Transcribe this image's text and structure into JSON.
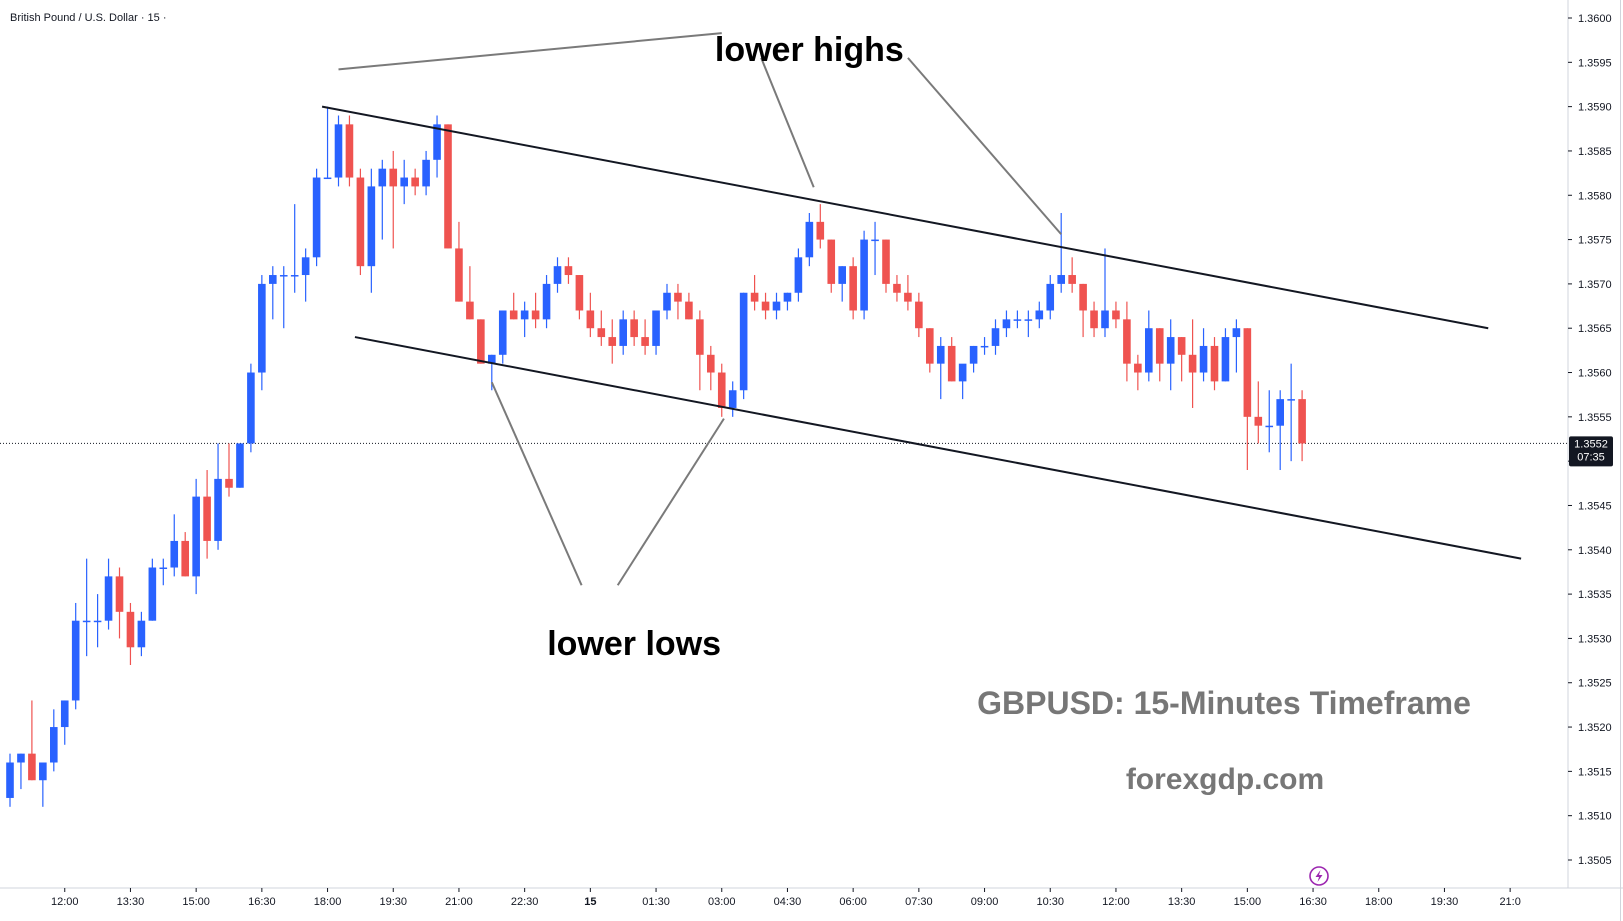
{
  "symbol_label": "British Pound / U.S. Dollar · 15 ·",
  "colors": {
    "up": "#2962ff",
    "down": "#ef5350",
    "axis_text": "#131722",
    "price_box": "#131722",
    "watermark": "#777777"
  },
  "chart_data": {
    "type": "candlestick",
    "ylim": [
      1.3498,
      1.3603
    ],
    "y_ticks": [
      "1.3505",
      "1.3510",
      "1.3515",
      "1.3520",
      "1.3525",
      "1.3530",
      "1.3535",
      "1.3540",
      "1.3545",
      "1.3550",
      "1.3555",
      "1.3560",
      "1.3565",
      "1.3570",
      "1.3575",
      "1.3580",
      "1.3585",
      "1.3590",
      "1.3595",
      "1.3600"
    ],
    "x_ticks": [
      {
        "label": "12:00",
        "bar": 5
      },
      {
        "label": "13:30",
        "bar": 11
      },
      {
        "label": "15:00",
        "bar": 17
      },
      {
        "label": "16:30",
        "bar": 23
      },
      {
        "label": "18:00",
        "bar": 29
      },
      {
        "label": "19:30",
        "bar": 35
      },
      {
        "label": "21:00",
        "bar": 41
      },
      {
        "label": "22:30",
        "bar": 47
      },
      {
        "label": "15",
        "bar": 53
      },
      {
        "label": "01:30",
        "bar": 59
      },
      {
        "label": "03:00",
        "bar": 65
      },
      {
        "label": "04:30",
        "bar": 71
      },
      {
        "label": "06:00",
        "bar": 77
      },
      {
        "label": "07:30",
        "bar": 83
      },
      {
        "label": "09:00",
        "bar": 89
      },
      {
        "label": "10:30",
        "bar": 95
      },
      {
        "label": "12:00",
        "bar": 101
      },
      {
        "label": "13:30",
        "bar": 107
      },
      {
        "label": "15:00",
        "bar": 113
      },
      {
        "label": "16:30",
        "bar": 119
      },
      {
        "label": "18:00",
        "bar": 125
      },
      {
        "label": "19:30",
        "bar": 131
      },
      {
        "label": "21:0",
        "bar": 137
      }
    ],
    "candles": [
      [
        1.3512,
        1.3517,
        1.3511,
        1.3516
      ],
      [
        1.3516,
        1.3517,
        1.3513,
        1.3517
      ],
      [
        1.3517,
        1.3523,
        1.3514,
        1.3514
      ],
      [
        1.3514,
        1.3516,
        1.3511,
        1.3516
      ],
      [
        1.3516,
        1.3522,
        1.3515,
        1.352
      ],
      [
        1.352,
        1.3523,
        1.3518,
        1.3523
      ],
      [
        1.3523,
        1.3534,
        1.3522,
        1.3532
      ],
      [
        1.3532,
        1.3539,
        1.3528,
        1.3532
      ],
      [
        1.3532,
        1.3535,
        1.3529,
        1.3532
      ],
      [
        1.3532,
        1.3539,
        1.3531,
        1.3537
      ],
      [
        1.3537,
        1.3538,
        1.353,
        1.3533
      ],
      [
        1.3533,
        1.3534,
        1.3527,
        1.3529
      ],
      [
        1.3529,
        1.3533,
        1.3528,
        1.3532
      ],
      [
        1.3532,
        1.3539,
        1.3532,
        1.3538
      ],
      [
        1.3538,
        1.3539,
        1.3536,
        1.3538
      ],
      [
        1.3538,
        1.3544,
        1.3537,
        1.3541
      ],
      [
        1.3541,
        1.3542,
        1.3537,
        1.3537
      ],
      [
        1.3537,
        1.3548,
        1.3535,
        1.3546
      ],
      [
        1.3546,
        1.3549,
        1.3539,
        1.3541
      ],
      [
        1.3541,
        1.3552,
        1.354,
        1.3548
      ],
      [
        1.3548,
        1.3552,
        1.3546,
        1.3547
      ],
      [
        1.3547,
        1.3552,
        1.3547,
        1.3552
      ],
      [
        1.3552,
        1.3561,
        1.3551,
        1.356
      ],
      [
        1.356,
        1.3571,
        1.3558,
        1.357
      ],
      [
        1.357,
        1.3572,
        1.3566,
        1.3571
      ],
      [
        1.3571,
        1.3572,
        1.3565,
        1.3571
      ],
      [
        1.3571,
        1.3579,
        1.3569,
        1.3571
      ],
      [
        1.3571,
        1.3574,
        1.3568,
        1.3573
      ],
      [
        1.3573,
        1.3583,
        1.3572,
        1.3582
      ],
      [
        1.3582,
        1.359,
        1.3582,
        1.3582
      ],
      [
        1.3582,
        1.3589,
        1.3581,
        1.3588
      ],
      [
        1.3588,
        1.3589,
        1.3581,
        1.3582
      ],
      [
        1.3582,
        1.3583,
        1.3571,
        1.3572
      ],
      [
        1.3572,
        1.3583,
        1.3569,
        1.3581
      ],
      [
        1.3581,
        1.3584,
        1.3575,
        1.3583
      ],
      [
        1.3583,
        1.3585,
        1.3574,
        1.3581
      ],
      [
        1.3581,
        1.3584,
        1.3579,
        1.3582
      ],
      [
        1.3582,
        1.3583,
        1.358,
        1.3581
      ],
      [
        1.3581,
        1.3585,
        1.358,
        1.3584
      ],
      [
        1.3584,
        1.3589,
        1.3582,
        1.3588
      ],
      [
        1.3588,
        1.3588,
        1.3574,
        1.3574
      ],
      [
        1.3574,
        1.3577,
        1.3568,
        1.3568
      ],
      [
        1.3568,
        1.3572,
        1.3566,
        1.3566
      ],
      [
        1.3566,
        1.3566,
        1.3561,
        1.3561
      ],
      [
        1.3561,
        1.3562,
        1.3558,
        1.3562
      ],
      [
        1.3562,
        1.3567,
        1.3561,
        1.3567
      ],
      [
        1.3567,
        1.3569,
        1.3566,
        1.3566
      ],
      [
        1.3566,
        1.3568,
        1.3564,
        1.3567
      ],
      [
        1.3567,
        1.3569,
        1.3565,
        1.3566
      ],
      [
        1.3566,
        1.3571,
        1.3565,
        1.357
      ],
      [
        1.357,
        1.3573,
        1.3569,
        1.3572
      ],
      [
        1.3572,
        1.3573,
        1.357,
        1.3571
      ],
      [
        1.3571,
        1.3571,
        1.3566,
        1.3567
      ],
      [
        1.3567,
        1.3569,
        1.3564,
        1.3565
      ],
      [
        1.3565,
        1.3567,
        1.3563,
        1.3564
      ],
      [
        1.3564,
        1.3566,
        1.3561,
        1.3563
      ],
      [
        1.3563,
        1.3567,
        1.3562,
        1.3566
      ],
      [
        1.3566,
        1.3567,
        1.3563,
        1.3564
      ],
      [
        1.3564,
        1.3566,
        1.3562,
        1.3563
      ],
      [
        1.3563,
        1.3567,
        1.3562,
        1.3567
      ],
      [
        1.3567,
        1.357,
        1.3566,
        1.3569
      ],
      [
        1.3569,
        1.357,
        1.3566,
        1.3568
      ],
      [
        1.3568,
        1.3569,
        1.3566,
        1.3566
      ],
      [
        1.3566,
        1.3567,
        1.3558,
        1.3562
      ],
      [
        1.3562,
        1.3563,
        1.3558,
        1.356
      ],
      [
        1.356,
        1.3561,
        1.3555,
        1.3556
      ],
      [
        1.3556,
        1.3559,
        1.3555,
        1.3558
      ],
      [
        1.3558,
        1.3569,
        1.3557,
        1.3569
      ],
      [
        1.3569,
        1.3571,
        1.3567,
        1.3568
      ],
      [
        1.3568,
        1.3569,
        1.3566,
        1.3567
      ],
      [
        1.3567,
        1.3569,
        1.3566,
        1.3568
      ],
      [
        1.3568,
        1.3569,
        1.3567,
        1.3569
      ],
      [
        1.3569,
        1.3574,
        1.3568,
        1.3573
      ],
      [
        1.3573,
        1.3578,
        1.3572,
        1.3577
      ],
      [
        1.3577,
        1.3579,
        1.3574,
        1.3575
      ],
      [
        1.3575,
        1.3575,
        1.3569,
        1.357
      ],
      [
        1.357,
        1.3572,
        1.3568,
        1.3572
      ],
      [
        1.3572,
        1.3573,
        1.3566,
        1.3567
      ],
      [
        1.3567,
        1.3576,
        1.3566,
        1.3575
      ],
      [
        1.3575,
        1.3577,
        1.3571,
        1.3575
      ],
      [
        1.3575,
        1.3575,
        1.3569,
        1.357
      ],
      [
        1.357,
        1.3571,
        1.3568,
        1.3569
      ],
      [
        1.3569,
        1.3571,
        1.3567,
        1.3568
      ],
      [
        1.3568,
        1.3569,
        1.3564,
        1.3565
      ],
      [
        1.3565,
        1.3565,
        1.356,
        1.3561
      ],
      [
        1.3561,
        1.3564,
        1.3557,
        1.3563
      ],
      [
        1.3563,
        1.3564,
        1.3559,
        1.3559
      ],
      [
        1.3559,
        1.356,
        1.3557,
        1.3561
      ],
      [
        1.3561,
        1.3563,
        1.356,
        1.3563
      ],
      [
        1.3563,
        1.3564,
        1.3562,
        1.3563
      ],
      [
        1.3563,
        1.3566,
        1.3562,
        1.3565
      ],
      [
        1.3565,
        1.3567,
        1.3564,
        1.3566
      ],
      [
        1.3566,
        1.3567,
        1.3565,
        1.3566
      ],
      [
        1.3566,
        1.3567,
        1.3564,
        1.3566
      ],
      [
        1.3566,
        1.3568,
        1.3565,
        1.3567
      ],
      [
        1.3567,
        1.3571,
        1.3566,
        1.357
      ],
      [
        1.357,
        1.3578,
        1.3569,
        1.3571
      ],
      [
        1.3571,
        1.3573,
        1.3569,
        1.357
      ],
      [
        1.357,
        1.357,
        1.3564,
        1.3567
      ],
      [
        1.3567,
        1.3568,
        1.3564,
        1.3565
      ],
      [
        1.3565,
        1.3574,
        1.3564,
        1.3567
      ],
      [
        1.3567,
        1.3568,
        1.3565,
        1.3566
      ],
      [
        1.3566,
        1.3568,
        1.3559,
        1.3561
      ],
      [
        1.3561,
        1.3562,
        1.3558,
        1.356
      ],
      [
        1.356,
        1.3567,
        1.3559,
        1.3565
      ],
      [
        1.3565,
        1.3565,
        1.3559,
        1.3561
      ],
      [
        1.3561,
        1.3566,
        1.3558,
        1.3564
      ],
      [
        1.3564,
        1.3564,
        1.3559,
        1.3562
      ],
      [
        1.3562,
        1.3566,
        1.3556,
        1.356
      ],
      [
        1.356,
        1.3565,
        1.3559,
        1.3563
      ],
      [
        1.3563,
        1.3564,
        1.3558,
        1.3559
      ],
      [
        1.3559,
        1.3565,
        1.3559,
        1.3564
      ],
      [
        1.3564,
        1.3566,
        1.356,
        1.3565
      ],
      [
        1.3565,
        1.3565,
        1.3549,
        1.3555
      ],
      [
        1.3555,
        1.3559,
        1.3552,
        1.3554
      ],
      [
        1.3554,
        1.3558,
        1.3551,
        1.3554
      ],
      [
        1.3554,
        1.3558,
        1.3549,
        1.3557
      ],
      [
        1.3557,
        1.3561,
        1.355,
        1.3557
      ],
      [
        1.3557,
        1.3558,
        1.355,
        1.3552
      ]
    ],
    "trendlines": [
      {
        "name": "upper-channel",
        "p1": [
          28.5,
          1.359
        ],
        "p2": [
          135,
          1.3565
        ]
      },
      {
        "name": "lower-channel",
        "p1": [
          31.5,
          1.3564
        ],
        "p2": [
          138,
          1.3539
        ]
      }
    ],
    "annotations": [
      {
        "name": "lower-highs",
        "text": "lower highs",
        "x": 73,
        "y": 1.35965
      },
      {
        "name": "lower-lows",
        "text": "lower lows",
        "x": 57,
        "y": 1.35295
      }
    ],
    "pointers": [
      {
        "name": "pointer-high-1",
        "from": [
          30,
          1.35942
        ],
        "to": [
          65,
          1.35983
        ]
      },
      {
        "name": "pointer-high-2",
        "from": [
          68.6,
          1.35955
        ],
        "to": [
          73.4,
          1.35809
        ]
      },
      {
        "name": "pointer-high-3",
        "from": [
          82,
          1.35955
        ],
        "to": [
          96,
          1.35756
        ]
      },
      {
        "name": "pointer-low-1",
        "from": [
          44,
          1.35589
        ],
        "to": [
          52.2,
          1.3536
        ]
      },
      {
        "name": "pointer-low-2",
        "from": [
          65.2,
          1.35548
        ],
        "to": [
          55.5,
          1.3536
        ]
      }
    ],
    "current_price": {
      "value": 1.3552,
      "label": "1.3552",
      "countdown": "07:35"
    }
  },
  "watermark": {
    "title": "GBPUSD: 15-Minutes Timeframe",
    "site": "forexgdp.com"
  }
}
